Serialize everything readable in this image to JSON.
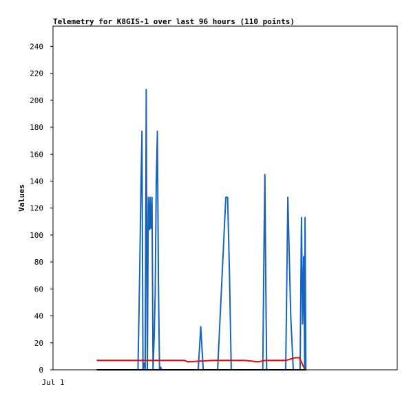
{
  "chart_data": {
    "type": "line",
    "title": "Telemetry for K8GIS-1 over last 96 hours (110 points)",
    "xlabel": "",
    "ylabel": "Values",
    "x_tick_labels": [
      "Jul 1"
    ],
    "ylim": [
      0,
      255
    ],
    "y_ticks": [
      0,
      20,
      40,
      60,
      80,
      100,
      120,
      140,
      160,
      180,
      200,
      220,
      240
    ],
    "xlim": [
      0,
      96
    ],
    "grid": false,
    "legend": "none",
    "series": [
      {
        "color": "#1565c0",
        "x": [
          23.7,
          24.2,
          24.5,
          24.8,
          25.1,
          25.4,
          25.7,
          26.0,
          26.3,
          26.6,
          26.9,
          27.1,
          27.3,
          27.6,
          27.9,
          28.2,
          28.5,
          28.8,
          29.1,
          29.4,
          29.7,
          30.0,
          30.3,
          30.6,
          31.6,
          40.5,
          41.2,
          41.9,
          42.7,
          45.9,
          48.2,
          48.7,
          49.2,
          49.7,
          50.5,
          51.9,
          52.2,
          58.5,
          58.9,
          59.1,
          59.3,
          59.6,
          64.9,
          65.5,
          66.3,
          67.0,
          67.6,
          68.3,
          68.9,
          69.3,
          69.6,
          69.9,
          70.2,
          70.3,
          70.4,
          70.5
        ],
        "y": [
          0,
          75,
          132,
          177,
          0,
          5,
          0,
          208,
          0,
          128,
          104,
          128,
          105,
          128,
          0,
          24,
          56,
          140,
          177,
          66,
          0,
          2,
          0,
          0,
          0,
          0,
          32,
          0,
          0,
          0,
          128,
          128,
          72,
          0,
          0,
          0,
          0,
          0,
          108,
          145,
          72,
          0,
          0,
          128,
          40,
          0,
          0,
          0,
          0,
          113,
          34,
          84,
          0,
          113,
          56,
          0
        ]
      },
      {
        "color": "#ff0000",
        "x": [
          12.2,
          23.5,
          36.7,
          37.5,
          44.7,
          53.4,
          57.2,
          59.3,
          64.9,
          67.5,
          68.7,
          70.3,
          70.6
        ],
        "y": [
          7,
          7,
          7,
          6,
          7,
          7,
          6,
          7,
          7,
          9,
          9,
          0,
          0
        ]
      },
      {
        "color": "#000000",
        "x": [
          12.2,
          70.6
        ],
        "y": [
          0,
          0
        ]
      }
    ]
  }
}
